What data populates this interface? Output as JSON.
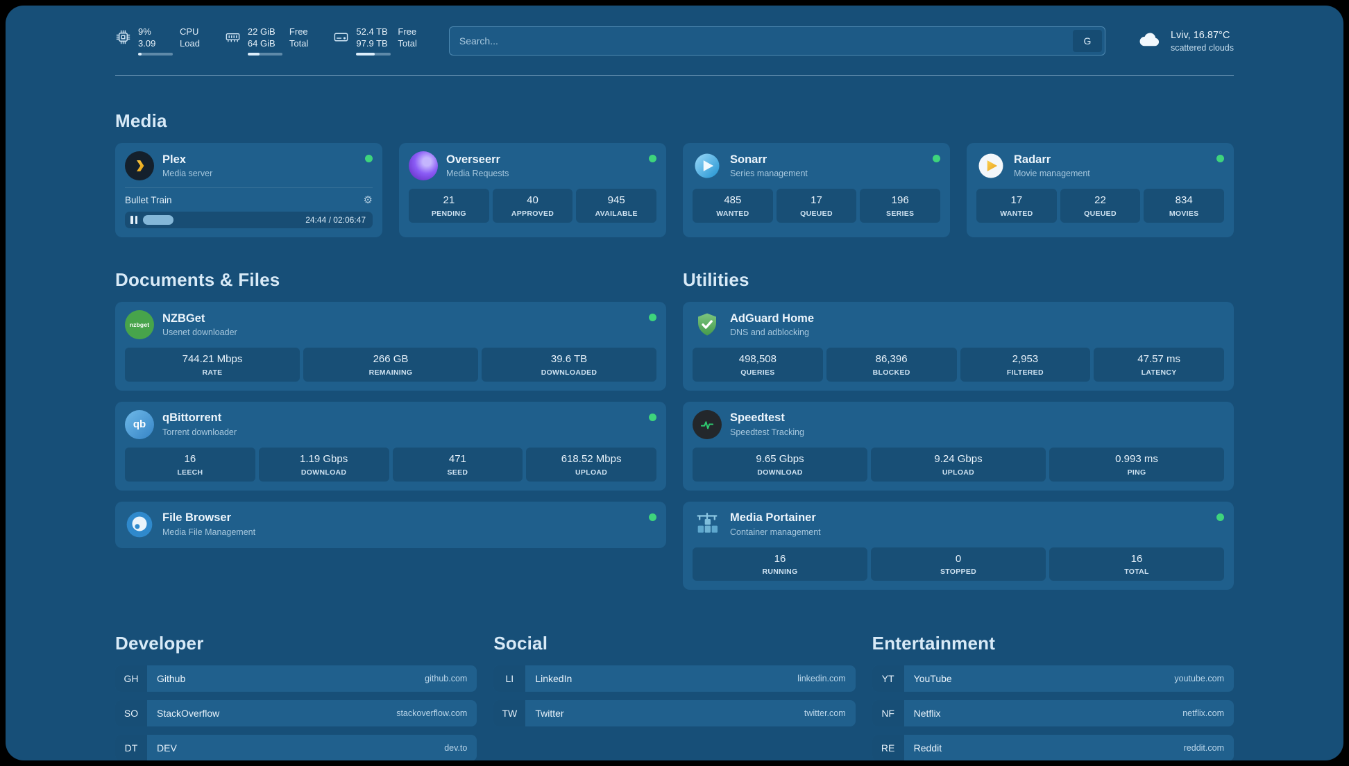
{
  "topbar": {
    "cpu": {
      "value1": "9%",
      "value2": "3.09",
      "label1": "CPU",
      "label2": "Load"
    },
    "ram": {
      "value1": "22 GiB",
      "value2": "64 GiB",
      "label1": "Free",
      "label2": "Total"
    },
    "disk": {
      "value1": "52.4 TB",
      "value2": "97.9 TB",
      "label1": "Free",
      "label2": "Total"
    },
    "search": {
      "placeholder": "Search...",
      "engine_label": "G"
    },
    "weather": {
      "location": "Lviv, 16.87°C",
      "condition": "scattered clouds"
    }
  },
  "sections": {
    "media": {
      "title": "Media"
    },
    "documents": {
      "title": "Documents & Files"
    },
    "utilities": {
      "title": "Utilities"
    },
    "developer": {
      "title": "Developer"
    },
    "social": {
      "title": "Social"
    },
    "entertainment": {
      "title": "Entertainment"
    }
  },
  "apps": {
    "plex": {
      "name": "Plex",
      "subtitle": "Media server",
      "now_playing": "Bullet Train",
      "time": "24:44 / 02:06:47"
    },
    "overseerr": {
      "name": "Overseerr",
      "subtitle": "Media Requests",
      "stats": [
        {
          "value": "21",
          "label": "PENDING"
        },
        {
          "value": "40",
          "label": "APPROVED"
        },
        {
          "value": "945",
          "label": "AVAILABLE"
        }
      ]
    },
    "sonarr": {
      "name": "Sonarr",
      "subtitle": "Series management",
      "stats": [
        {
          "value": "485",
          "label": "WANTED"
        },
        {
          "value": "17",
          "label": "QUEUED"
        },
        {
          "value": "196",
          "label": "SERIES"
        }
      ]
    },
    "radarr": {
      "name": "Radarr",
      "subtitle": "Movie management",
      "stats": [
        {
          "value": "17",
          "label": "WANTED"
        },
        {
          "value": "22",
          "label": "QUEUED"
        },
        {
          "value": "834",
          "label": "MOVIES"
        }
      ]
    },
    "nzbget": {
      "name": "NZBGet",
      "subtitle": "Usenet downloader",
      "stats": [
        {
          "value": "744.21 Mbps",
          "label": "RATE"
        },
        {
          "value": "266 GB",
          "label": "REMAINING"
        },
        {
          "value": "39.6 TB",
          "label": "DOWNLOADED"
        }
      ]
    },
    "qbittorrent": {
      "name": "qBittorrent",
      "subtitle": "Torrent downloader",
      "stats": [
        {
          "value": "16",
          "label": "LEECH"
        },
        {
          "value": "1.19 Gbps",
          "label": "DOWNLOAD"
        },
        {
          "value": "471",
          "label": "SEED"
        },
        {
          "value": "618.52 Mbps",
          "label": "UPLOAD"
        }
      ]
    },
    "filebrowser": {
      "name": "File Browser",
      "subtitle": "Media File Management"
    },
    "adguard": {
      "name": "AdGuard Home",
      "subtitle": "DNS and adblocking",
      "stats": [
        {
          "value": "498,508",
          "label": "QUERIES"
        },
        {
          "value": "86,396",
          "label": "BLOCKED"
        },
        {
          "value": "2,953",
          "label": "FILTERED"
        },
        {
          "value": "47.57 ms",
          "label": "LATENCY"
        }
      ]
    },
    "speedtest": {
      "name": "Speedtest",
      "subtitle": "Speedtest Tracking",
      "stats": [
        {
          "value": "9.65 Gbps",
          "label": "DOWNLOAD"
        },
        {
          "value": "9.24 Gbps",
          "label": "UPLOAD"
        },
        {
          "value": "0.993 ms",
          "label": "PING"
        }
      ]
    },
    "portainer": {
      "name": "Media Portainer",
      "subtitle": "Container management",
      "stats": [
        {
          "value": "16",
          "label": "RUNNING"
        },
        {
          "value": "0",
          "label": "STOPPED"
        },
        {
          "value": "16",
          "label": "TOTAL"
        }
      ]
    }
  },
  "bookmarks": {
    "developer": [
      {
        "abbr": "GH",
        "name": "Github",
        "url": "github.com"
      },
      {
        "abbr": "SO",
        "name": "StackOverflow",
        "url": "stackoverflow.com"
      },
      {
        "abbr": "DT",
        "name": "DEV",
        "url": "dev.to"
      }
    ],
    "social": [
      {
        "abbr": "LI",
        "name": "LinkedIn",
        "url": "linkedin.com"
      },
      {
        "abbr": "TW",
        "name": "Twitter",
        "url": "twitter.com"
      }
    ],
    "entertainment": [
      {
        "abbr": "YT",
        "name": "YouTube",
        "url": "youtube.com"
      },
      {
        "abbr": "NF",
        "name": "Netflix",
        "url": "netflix.com"
      },
      {
        "abbr": "RE",
        "name": "Reddit",
        "url": "reddit.com"
      }
    ]
  },
  "icons": {
    "gear": "⚙"
  },
  "progress": {
    "plex_percent": 19.5,
    "cpu_bar": 9,
    "ram_bar": 34,
    "disk_bar": 54
  },
  "colors": {
    "background": "#174F78",
    "card": "#1F5F8C",
    "status_online": "#3ED47C",
    "heading": "#D8EAF7"
  }
}
